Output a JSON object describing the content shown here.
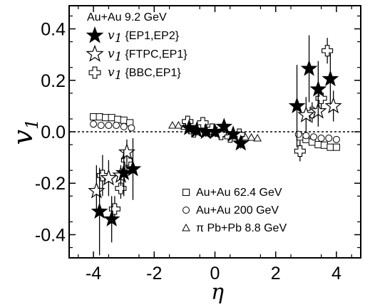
{
  "chart_data": {
    "type": "scatter",
    "title": "",
    "xlabel": "η",
    "ylabel": "v",
    "ylabel_sub": "1",
    "xlim": [
      -4.8,
      4.8
    ],
    "ylim": [
      -0.49,
      0.49
    ],
    "x_ticks": [
      -4,
      -2,
      0,
      2,
      4
    ],
    "x_tick_labels": [
      "-4",
      "-2",
      "0",
      "2",
      "4"
    ],
    "y_ticks": [
      -0.4,
      -0.2,
      0.0,
      0.2,
      0.4
    ],
    "y_tick_labels": [
      "-0.4",
      "-0.2",
      "0.0",
      "0.2",
      "0.4"
    ],
    "zero_line": true,
    "legend_top": {
      "title": "Au+Au 9.2 GeV",
      "entries": [
        {
          "v": "v",
          "sub": "1",
          "label": "{EP1,EP2}",
          "marker": "star-filled"
        },
        {
          "v": "v",
          "sub": "1",
          "label": "{FTPC,EP1}",
          "marker": "star-open"
        },
        {
          "v": "v",
          "sub": "1",
          "label": "{BBC,EP1}",
          "marker": "cross-open"
        }
      ]
    },
    "legend_bottom": {
      "entries": [
        {
          "label": "Au+Au 62.4 GeV",
          "marker": "square"
        },
        {
          "label": "Au+Au 200 GeV",
          "marker": "circle"
        },
        {
          "label": "π Pb+Pb 8.8 GeV",
          "marker": "triangle"
        }
      ]
    },
    "series": [
      {
        "name": "v1{EP1,EP2}",
        "marker": "star-filled",
        "points": [
          {
            "x": -3.8,
            "y": -0.31,
            "err": 0.17
          },
          {
            "x": -3.4,
            "y": -0.34,
            "err": 0.09
          },
          {
            "x": -3.0,
            "y": -0.16,
            "err": 0.09
          },
          {
            "x": -2.7,
            "y": -0.145,
            "err": 0.12
          },
          {
            "x": -0.85,
            "y": 0.015,
            "err": 0.02
          },
          {
            "x": -0.6,
            "y": 0.005,
            "err": 0.02
          },
          {
            "x": -0.3,
            "y": 0.0,
            "err": 0.02
          },
          {
            "x": 0.0,
            "y": 0.0,
            "err": 0.02
          },
          {
            "x": 0.3,
            "y": 0.02,
            "err": 0.02
          },
          {
            "x": 0.6,
            "y": -0.01,
            "err": 0.02
          },
          {
            "x": 0.85,
            "y": -0.045,
            "err": 0.02
          },
          {
            "x": 2.7,
            "y": 0.1,
            "err": 0.16
          },
          {
            "x": 3.1,
            "y": 0.245,
            "err": 0.13
          },
          {
            "x": 3.4,
            "y": 0.165,
            "err": 0.11
          },
          {
            "x": 3.8,
            "y": 0.205,
            "err": 0.1
          }
        ]
      },
      {
        "name": "v1{FTPC,EP1}",
        "marker": "star-open",
        "points": [
          {
            "x": -3.9,
            "y": -0.23,
            "err": 0.1
          },
          {
            "x": -3.5,
            "y": -0.18,
            "err": 0.07
          },
          {
            "x": -3.1,
            "y": -0.17,
            "err": 0.04
          },
          {
            "x": -2.9,
            "y": -0.08,
            "err": 0.05
          },
          {
            "x": 3.0,
            "y": 0.065,
            "err": 0.07
          },
          {
            "x": 3.4,
            "y": 0.08,
            "err": 0.06
          },
          {
            "x": 3.9,
            "y": 0.1,
            "err": 0.06
          }
        ]
      },
      {
        "name": "v1{BBC,EP1}",
        "marker": "cross-open",
        "points": [
          {
            "x": -3.7,
            "y": -0.17,
            "err": 0.08
          },
          {
            "x": -3.3,
            "y": -0.3,
            "err": 0.05
          },
          {
            "x": -3.1,
            "y": -0.22,
            "err": 0.04
          },
          {
            "x": -2.9,
            "y": -0.11,
            "err": 0.04
          },
          {
            "x": -0.9,
            "y": 0.04,
            "err": 0.02
          },
          {
            "x": -0.7,
            "y": 0.0,
            "err": 0.02
          },
          {
            "x": -0.4,
            "y": 0.035,
            "err": 0.02
          },
          {
            "x": -0.1,
            "y": 0.01,
            "err": 0.02
          },
          {
            "x": 0.2,
            "y": -0.01,
            "err": 0.02
          },
          {
            "x": 0.5,
            "y": -0.02,
            "err": 0.02
          },
          {
            "x": 0.8,
            "y": -0.01,
            "err": 0.02
          },
          {
            "x": 2.8,
            "y": -0.075,
            "err": 0.04
          },
          {
            "x": 3.2,
            "y": 0.075,
            "err": 0.04
          },
          {
            "x": 3.5,
            "y": 0.13,
            "err": 0.04
          },
          {
            "x": 3.7,
            "y": 0.315,
            "err": 0.05
          }
        ]
      },
      {
        "name": "Au+Au 62.4 GeV",
        "marker": "square",
        "points": [
          {
            "x": -4.0,
            "y": 0.058
          },
          {
            "x": -3.8,
            "y": 0.058
          },
          {
            "x": -3.6,
            "y": 0.055
          },
          {
            "x": -3.4,
            "y": 0.055
          },
          {
            "x": -3.2,
            "y": 0.048
          },
          {
            "x": -3.0,
            "y": 0.045
          },
          {
            "x": -2.8,
            "y": 0.035
          },
          {
            "x": 2.8,
            "y": -0.02
          },
          {
            "x": 3.0,
            "y": -0.03
          },
          {
            "x": 3.2,
            "y": -0.04
          },
          {
            "x": 3.4,
            "y": -0.05
          },
          {
            "x": 3.6,
            "y": -0.052
          },
          {
            "x": 3.8,
            "y": -0.06
          },
          {
            "x": 4.0,
            "y": -0.06
          }
        ]
      },
      {
        "name": "Au+Au 200 GeV",
        "marker": "circle",
        "points": [
          {
            "x": -4.0,
            "y": 0.03
          },
          {
            "x": -3.75,
            "y": 0.025
          },
          {
            "x": -3.5,
            "y": 0.025
          },
          {
            "x": -3.25,
            "y": 0.025
          },
          {
            "x": -3.0,
            "y": 0.02
          },
          {
            "x": -2.75,
            "y": 0.015
          },
          {
            "x": 2.75,
            "y": -0.01
          },
          {
            "x": 3.0,
            "y": -0.015
          },
          {
            "x": 3.25,
            "y": -0.02
          },
          {
            "x": 3.5,
            "y": -0.025
          },
          {
            "x": 3.75,
            "y": -0.025
          },
          {
            "x": 4.0,
            "y": -0.03
          }
        ]
      },
      {
        "name": "π Pb+Pb 8.8 GeV",
        "marker": "triangle",
        "points": [
          {
            "x": -1.4,
            "y": 0.025
          },
          {
            "x": -1.2,
            "y": 0.025
          },
          {
            "x": -1.0,
            "y": 0.02
          },
          {
            "x": -0.8,
            "y": 0.015
          },
          {
            "x": -0.6,
            "y": 0.012
          },
          {
            "x": -0.4,
            "y": 0.008
          },
          {
            "x": -0.2,
            "y": 0.004
          },
          {
            "x": 0.0,
            "y": 0.0
          },
          {
            "x": 0.2,
            "y": -0.004
          },
          {
            "x": 0.4,
            "y": -0.008
          },
          {
            "x": 0.6,
            "y": -0.012
          },
          {
            "x": 0.8,
            "y": -0.016
          },
          {
            "x": 1.0,
            "y": -0.02
          },
          {
            "x": 1.2,
            "y": -0.022
          },
          {
            "x": 1.4,
            "y": -0.025
          }
        ]
      }
    ]
  }
}
